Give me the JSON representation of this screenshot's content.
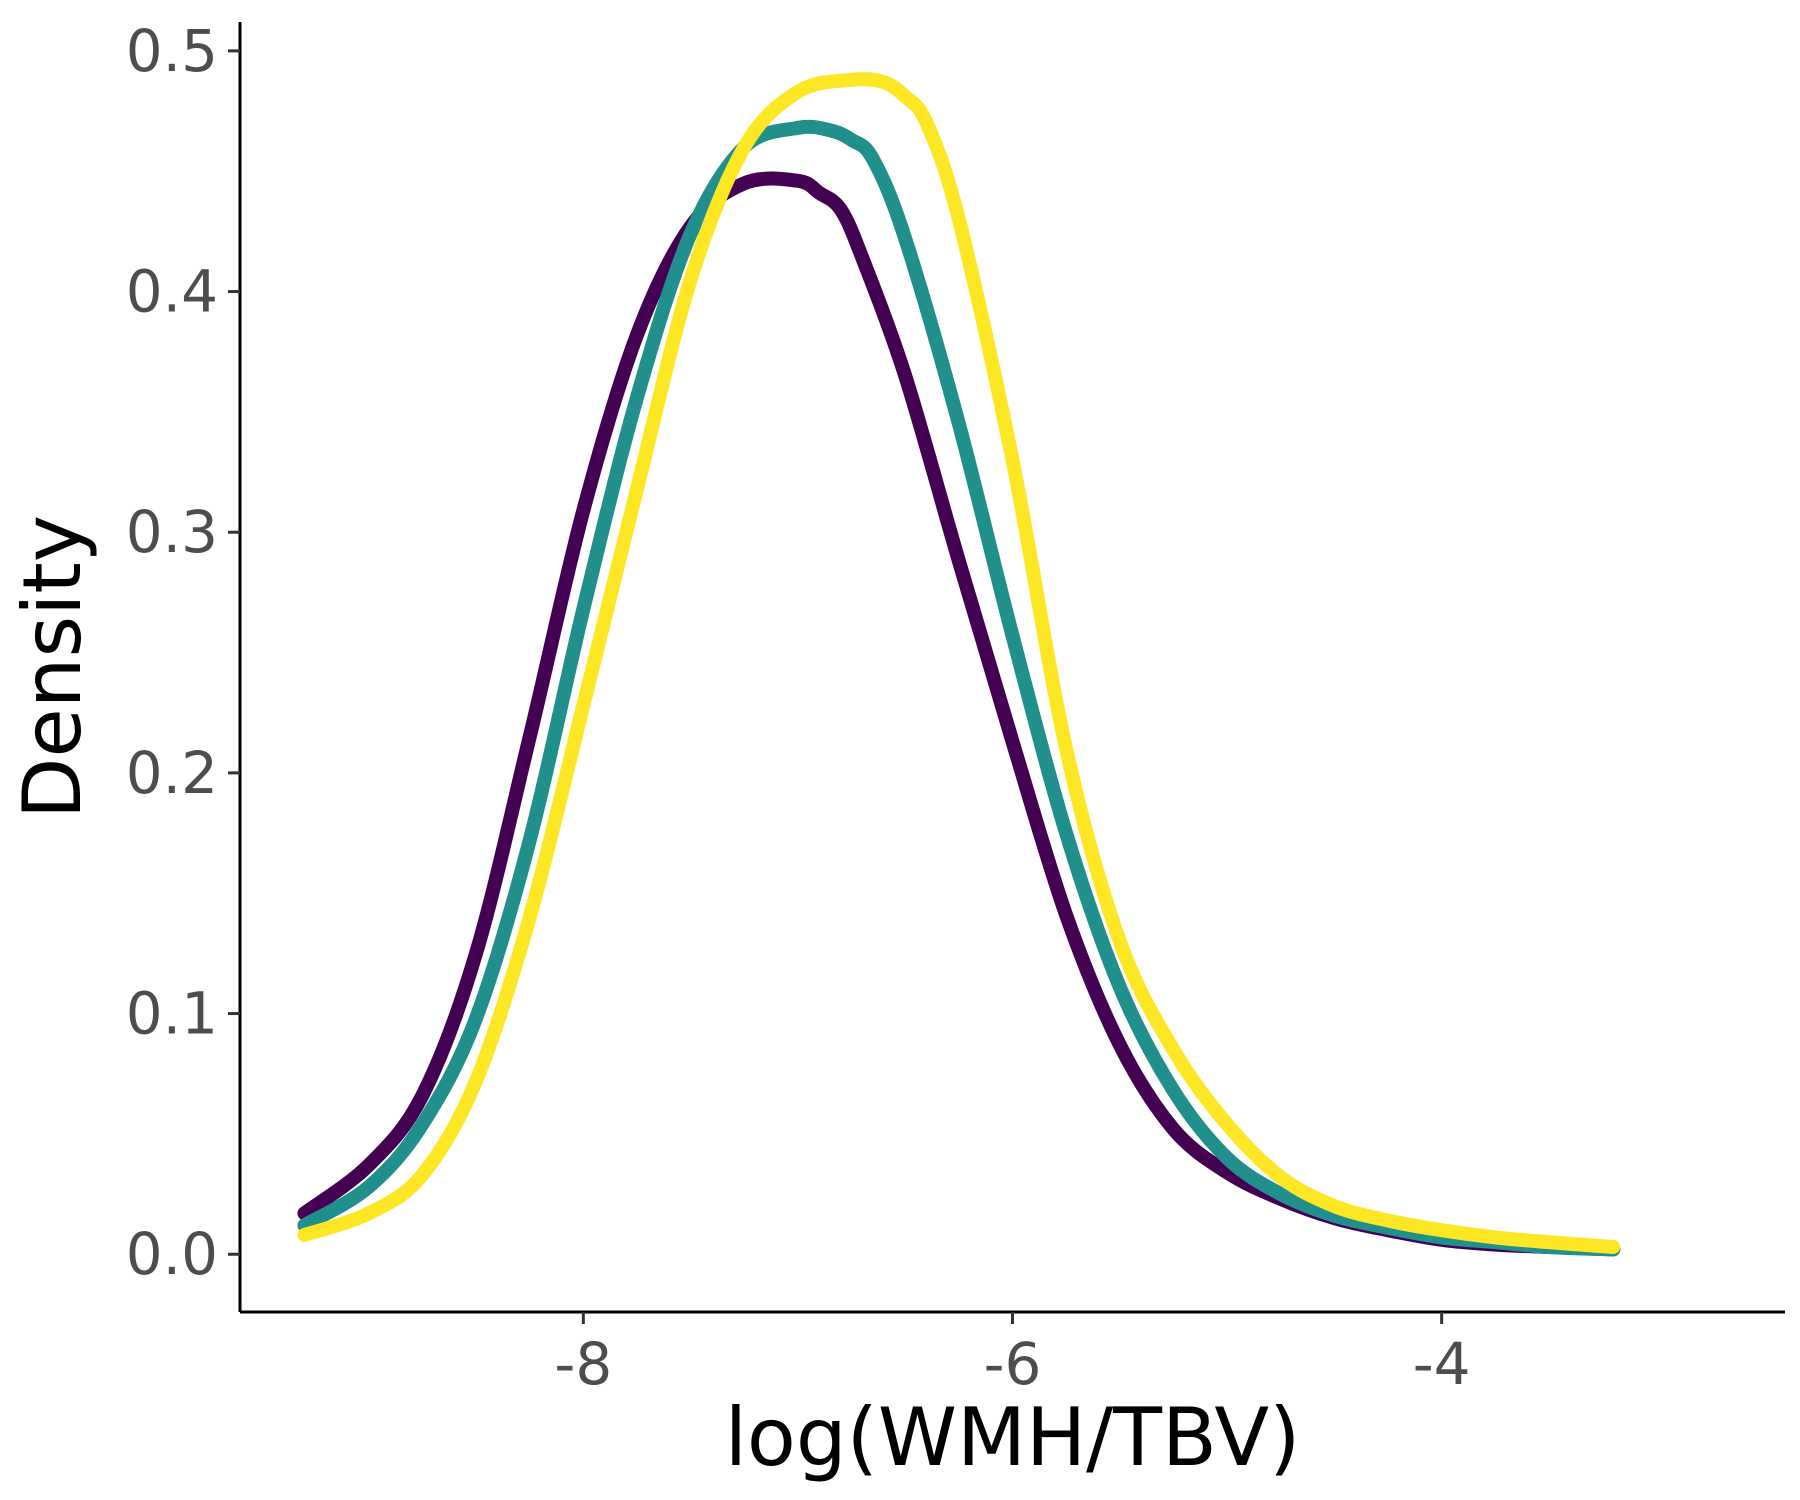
{
  "chart_data": {
    "type": "line",
    "title": "",
    "xlabel": "log(WMH/TBV)",
    "ylabel": "Density",
    "xlim": [
      -9.6,
      -2.4
    ],
    "ylim": [
      -0.024,
      0.512
    ],
    "x_ticks": [
      -8,
      -6,
      -4
    ],
    "x_tick_labels": [
      "-8",
      "-6",
      "-4"
    ],
    "y_ticks": [
      0.0,
      0.1,
      0.2,
      0.3,
      0.4,
      0.5
    ],
    "y_tick_labels": [
      "0.0",
      "0.1",
      "0.2",
      "0.3",
      "0.4",
      "0.5"
    ],
    "grid": false,
    "legend": "none",
    "series": [
      {
        "color": "#440154",
        "x": [
          -9.3,
          -9.0,
          -8.75,
          -8.5,
          -8.25,
          -8.0,
          -7.75,
          -7.5,
          -7.25,
          -7.0,
          -6.9,
          -6.8,
          -6.7,
          -6.5,
          -6.25,
          -6.0,
          -5.75,
          -5.5,
          -5.25,
          -5.0,
          -4.75,
          -4.5,
          -4.25,
          -4.0,
          -3.75,
          -3.5,
          -3.2
        ],
        "y": [
          0.017,
          0.037,
          0.066,
          0.125,
          0.215,
          0.309,
          0.382,
          0.427,
          0.445,
          0.446,
          0.441,
          0.434,
          0.414,
          0.365,
          0.288,
          0.213,
          0.141,
          0.087,
          0.052,
          0.034,
          0.023,
          0.015,
          0.01,
          0.006,
          0.004,
          0.003,
          0.002
        ]
      },
      {
        "color": "#21908C",
        "x": [
          -9.3,
          -9.0,
          -8.75,
          -8.5,
          -8.25,
          -8.0,
          -7.75,
          -7.5,
          -7.25,
          -7.0,
          -6.85,
          -6.75,
          -6.65,
          -6.5,
          -6.25,
          -6.0,
          -5.75,
          -5.5,
          -5.25,
          -5.0,
          -4.75,
          -4.5,
          -4.25,
          -4.0,
          -3.75,
          -3.5,
          -3.2
        ],
        "y": [
          0.012,
          0.028,
          0.054,
          0.098,
          0.172,
          0.268,
          0.356,
          0.424,
          0.46,
          0.468,
          0.467,
          0.463,
          0.455,
          0.422,
          0.345,
          0.257,
          0.175,
          0.111,
          0.068,
          0.04,
          0.025,
          0.016,
          0.011,
          0.007,
          0.005,
          0.003,
          0.002
        ]
      },
      {
        "color": "#FDE725",
        "x": [
          -9.3,
          -9.0,
          -8.75,
          -8.5,
          -8.25,
          -8.0,
          -7.75,
          -7.5,
          -7.25,
          -7.0,
          -6.75,
          -6.6,
          -6.5,
          -6.4,
          -6.25,
          -6.0,
          -5.75,
          -5.5,
          -5.25,
          -5.0,
          -4.75,
          -4.5,
          -4.25,
          -4.0,
          -3.75,
          -3.5,
          -3.2
        ],
        "y": [
          0.008,
          0.017,
          0.033,
          0.072,
          0.14,
          0.228,
          0.318,
          0.405,
          0.46,
          0.483,
          0.488,
          0.487,
          0.481,
          0.47,
          0.43,
          0.33,
          0.21,
          0.13,
          0.085,
          0.054,
          0.032,
          0.02,
          0.014,
          0.01,
          0.007,
          0.005,
          0.003
        ]
      }
    ]
  }
}
